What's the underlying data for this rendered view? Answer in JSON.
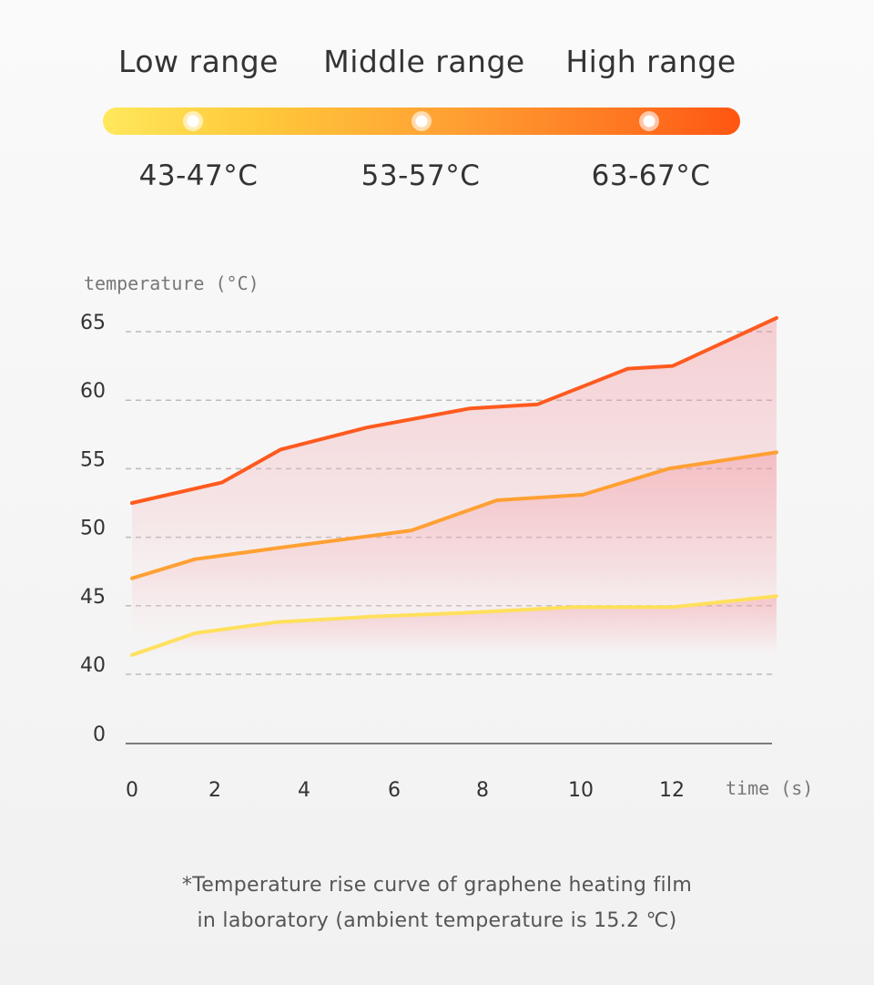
{
  "ranges": [
    {
      "label": "Low range",
      "value": "43-47°C"
    },
    {
      "label": "Middle range",
      "value": "53-57°C"
    },
    {
      "label": "High range",
      "value": "63-67°C"
    }
  ],
  "colors": {
    "low": "#ffe05c",
    "middle": "#ffa033",
    "high": "#ff5a1f",
    "fill": "#f3a0a8",
    "grid": "#bbbbbb",
    "axis": "#555555",
    "tick_text": "#333333",
    "label_text": "#777777"
  },
  "chart_data": {
    "type": "area",
    "ylabel": "temperature (°C)",
    "xlabel": "time (s)",
    "y_ticks": [
      "65",
      "60",
      "55",
      "50",
      "45",
      "40",
      "0"
    ],
    "x_ticks": [
      "0",
      "2",
      "4",
      "6",
      "8",
      "10",
      "12"
    ],
    "grid": "dashed horizontal",
    "series": [
      {
        "key": "high",
        "x": [
          0,
          2,
          3.3,
          5.2,
          7.5,
          9,
          10,
          11,
          12,
          14.3
        ],
        "values": [
          52.5,
          54,
          56.4,
          58,
          59.4,
          59.7,
          61,
          62.3,
          62.5,
          66
        ]
      },
      {
        "key": "middle",
        "x": [
          0,
          1.4,
          3.2,
          5.3,
          6.2,
          8.1,
          10,
          11.9,
          14.3
        ],
        "values": [
          47,
          48.4,
          49.2,
          50.1,
          50.5,
          52.7,
          53.1,
          55,
          56.2
        ]
      },
      {
        "key": "low",
        "x": [
          0,
          1.4,
          3.2,
          5.3,
          7.5,
          9.8,
          12,
          14.3
        ],
        "values": [
          41.4,
          43,
          43.8,
          44.2,
          44.5,
          44.9,
          44.9,
          45.7
        ]
      }
    ]
  },
  "footnote": {
    "line1": "*Temperature rise curve of graphene heating film",
    "line2": "in laboratory (ambient temperature is 15.2 ℃)"
  }
}
